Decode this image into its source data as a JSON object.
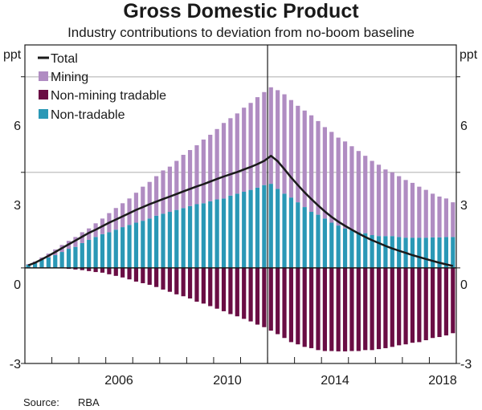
{
  "chart_data": {
    "type": "bar",
    "subtype": "stacked-bar-with-line",
    "title": "Gross Domestic Product",
    "subtitle": "Industry contributions to deviation from no-boom baseline",
    "ylabel_left": "ppt",
    "ylabel_right": "ppt",
    "ylim": [
      -3,
      7
    ],
    "yticks": [
      -3,
      0,
      3,
      6
    ],
    "xlim": [
      2003,
      2019
    ],
    "xticks_labeled": [
      2006,
      2010,
      2014,
      2018
    ],
    "x_frequency": "quarterly",
    "x_start": "2003Q1",
    "x_end": "2018Q4",
    "grid": "horizontal",
    "vertical_marker": 2012,
    "legend_position": "top-left",
    "legend": [
      {
        "name": "Total",
        "kind": "line",
        "color": "#1a1a1a"
      },
      {
        "name": "Mining",
        "kind": "bar",
        "color": "#B08CC2"
      },
      {
        "name": "Non-mining tradable",
        "kind": "bar",
        "color": "#6A0D44"
      },
      {
        "name": "Non-tradable",
        "kind": "bar",
        "color": "#2A98B6"
      }
    ],
    "series": [
      {
        "name": "Non-tradable",
        "values": [
          0.1,
          0.15,
          0.25,
          0.33,
          0.4,
          0.5,
          0.6,
          0.66,
          0.78,
          0.88,
          0.97,
          1.06,
          1.12,
          1.2,
          1.28,
          1.35,
          1.42,
          1.48,
          1.55,
          1.64,
          1.7,
          1.76,
          1.82,
          1.88,
          1.94,
          2.0,
          2.03,
          2.09,
          2.15,
          2.18,
          2.27,
          2.33,
          2.39,
          2.45,
          2.52,
          2.6,
          2.64,
          2.48,
          2.33,
          2.21,
          2.06,
          1.91,
          1.76,
          1.67,
          1.55,
          1.42,
          1.33,
          1.24,
          1.18,
          1.12,
          1.09,
          1.03,
          1.0,
          1.0,
          1.0,
          0.97,
          0.95,
          0.95,
          0.95,
          0.95,
          0.96,
          0.96,
          0.97,
          0.97
        ]
      },
      {
        "name": "Mining",
        "values": [
          0.02,
          0.05,
          0.08,
          0.12,
          0.18,
          0.22,
          0.25,
          0.31,
          0.34,
          0.36,
          0.43,
          0.49,
          0.6,
          0.68,
          0.75,
          0.83,
          0.94,
          1.07,
          1.15,
          1.24,
          1.36,
          1.42,
          1.54,
          1.67,
          1.76,
          1.85,
          2.0,
          2.09,
          2.21,
          2.37,
          2.43,
          2.52,
          2.64,
          2.73,
          2.84,
          2.92,
          3.03,
          3.1,
          3.12,
          3.06,
          3.03,
          3.03,
          3.03,
          2.94,
          2.87,
          2.85,
          2.76,
          2.73,
          2.64,
          2.55,
          2.43,
          2.33,
          2.24,
          2.09,
          2.0,
          1.91,
          1.81,
          1.72,
          1.6,
          1.5,
          1.37,
          1.28,
          1.21,
          1.09
        ]
      },
      {
        "name": "Non-mining tradable",
        "values": [
          0,
          0,
          0,
          0,
          0,
          0,
          -0.03,
          -0.05,
          -0.07,
          -0.1,
          -0.13,
          -0.15,
          -0.2,
          -0.25,
          -0.3,
          -0.36,
          -0.43,
          -0.48,
          -0.53,
          -0.6,
          -0.68,
          -0.75,
          -0.83,
          -0.89,
          -0.96,
          -1.06,
          -1.12,
          -1.2,
          -1.28,
          -1.36,
          -1.45,
          -1.52,
          -1.6,
          -1.68,
          -1.78,
          -1.86,
          -1.97,
          -2.08,
          -2.2,
          -2.33,
          -2.4,
          -2.48,
          -2.52,
          -2.58,
          -2.61,
          -2.61,
          -2.62,
          -2.62,
          -2.61,
          -2.61,
          -2.58,
          -2.58,
          -2.55,
          -2.52,
          -2.48,
          -2.43,
          -2.4,
          -2.35,
          -2.33,
          -2.27,
          -2.2,
          -2.17,
          -2.12,
          -2.05
        ]
      },
      {
        "name": "Total",
        "values": [
          0.08,
          0.16,
          0.27,
          0.38,
          0.5,
          0.62,
          0.74,
          0.86,
          0.98,
          1.1,
          1.2,
          1.31,
          1.42,
          1.52,
          1.62,
          1.72,
          1.82,
          1.91,
          2.0,
          2.08,
          2.16,
          2.24,
          2.32,
          2.4,
          2.48,
          2.56,
          2.63,
          2.71,
          2.79,
          2.87,
          2.94,
          3.01,
          3.09,
          3.17,
          3.26,
          3.36,
          3.52,
          3.35,
          3.1,
          2.84,
          2.6,
          2.37,
          2.16,
          1.96,
          1.77,
          1.6,
          1.45,
          1.32,
          1.2,
          1.08,
          0.97,
          0.87,
          0.78,
          0.69,
          0.61,
          0.54,
          0.47,
          0.4,
          0.34,
          0.28,
          0.22,
          0.16,
          0.11,
          0.06
        ]
      }
    ]
  },
  "header": {
    "title": "Gross Domestic Product",
    "subtitle": "Industry contributions to deviation from no-boom baseline"
  },
  "axes": {
    "left_unit": "ppt",
    "right_unit": "ppt",
    "y_tick_labels": [
      "6",
      "3",
      "0",
      "-3"
    ],
    "x_tick_labels": [
      "2006",
      "2010",
      "2014",
      "2018"
    ]
  },
  "legend": {
    "total": "Total",
    "mining": "Mining",
    "non_mining_tradable": "Non-mining tradable",
    "non_tradable": "Non-tradable"
  },
  "footer": {
    "source_label": "Source:",
    "source_value": "RBA"
  }
}
